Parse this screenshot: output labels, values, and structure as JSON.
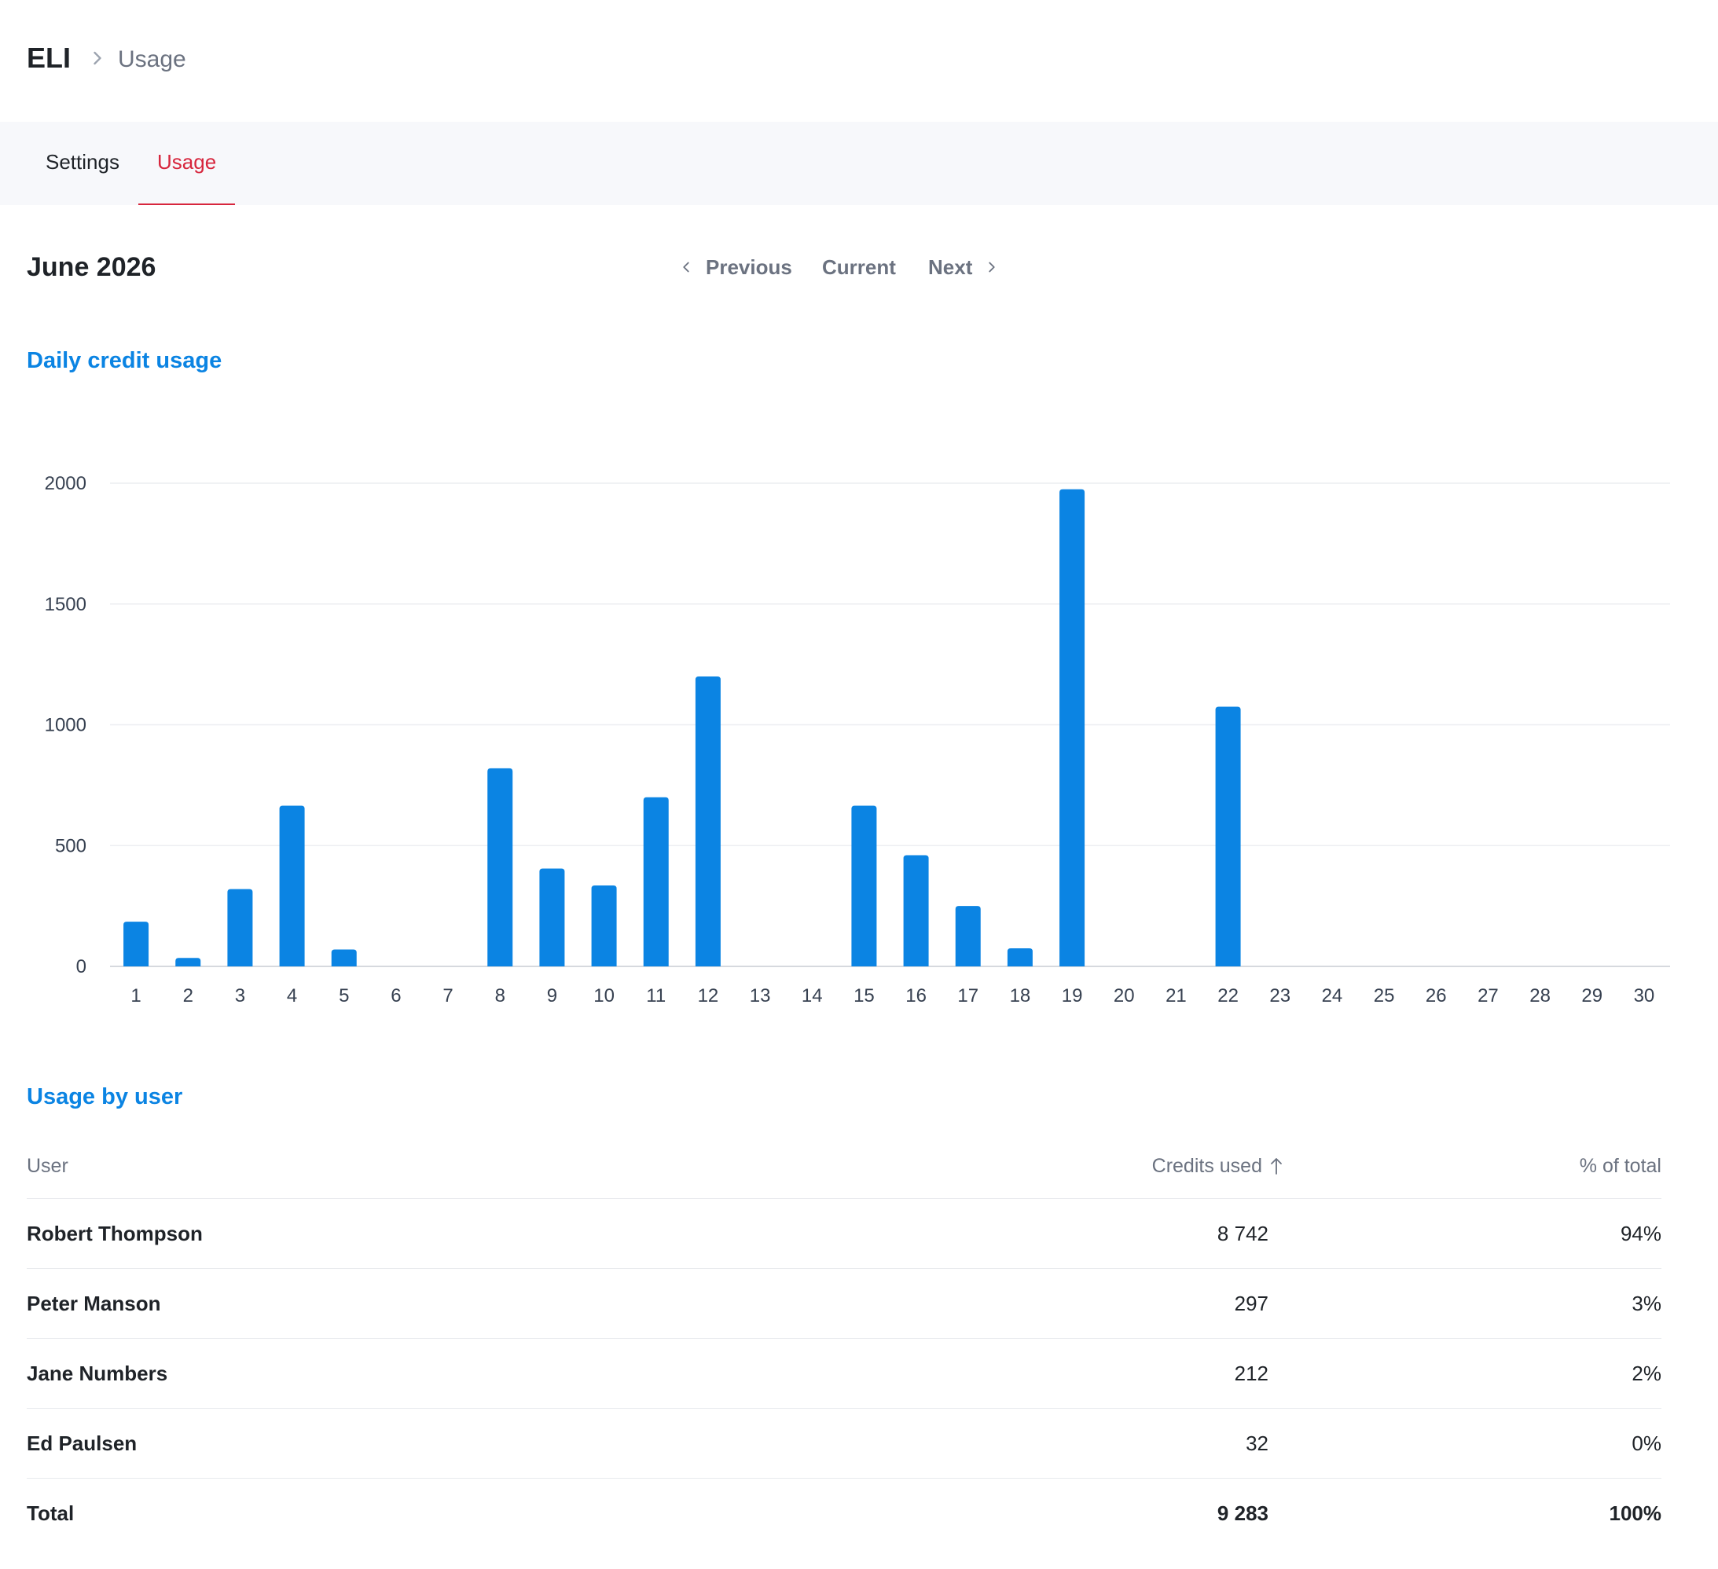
{
  "breadcrumb": {
    "org": "ELI",
    "page": "Usage"
  },
  "tabs": [
    {
      "label": "Settings",
      "active": false
    },
    {
      "label": "Usage",
      "active": true
    }
  ],
  "period": {
    "title": "June 2026",
    "previous_label": "Previous",
    "current_label": "Current",
    "next_label": "Next"
  },
  "sections": {
    "chart_title": "Daily credit usage",
    "users_title": "Usage by user"
  },
  "colors": {
    "accent": "#0b84e3",
    "active_tab": "#d7263d"
  },
  "chart_data": {
    "type": "bar",
    "title": "Daily credit usage",
    "xlabel": "",
    "ylabel": "",
    "ylim": [
      0,
      2000
    ],
    "yticks": [
      0,
      500,
      1000,
      1500,
      2000
    ],
    "grid": true,
    "categories": [
      "1",
      "2",
      "3",
      "4",
      "5",
      "6",
      "7",
      "8",
      "9",
      "10",
      "11",
      "12",
      "13",
      "14",
      "15",
      "16",
      "17",
      "18",
      "19",
      "20",
      "21",
      "22",
      "23",
      "24",
      "25",
      "26",
      "27",
      "28",
      "29",
      "30"
    ],
    "values": [
      185,
      35,
      320,
      665,
      70,
      0,
      0,
      820,
      405,
      335,
      700,
      1200,
      0,
      0,
      665,
      460,
      250,
      75,
      1975,
      0,
      0,
      1075,
      0,
      0,
      0,
      0,
      0,
      0,
      0,
      0
    ]
  },
  "table": {
    "headers": {
      "user": "User",
      "credits": "Credits used",
      "pct": "% of total"
    },
    "rows": [
      {
        "name": "Robert Thompson",
        "credits": "8 742",
        "pct": "94%"
      },
      {
        "name": "Peter Manson",
        "credits": "297",
        "pct": "3%"
      },
      {
        "name": "Jane Numbers",
        "credits": "212",
        "pct": "2%"
      },
      {
        "name": "Ed Paulsen",
        "credits": "32",
        "pct": "0%"
      }
    ],
    "total": {
      "label": "Total",
      "credits": "9 283",
      "pct": "100%"
    }
  }
}
